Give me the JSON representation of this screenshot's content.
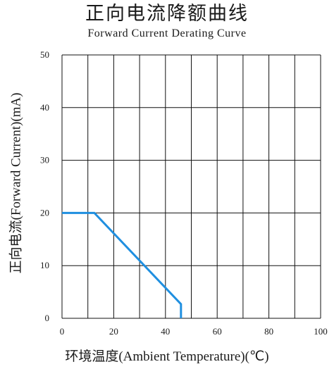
{
  "chart_data": {
    "type": "line",
    "title": "正向电流降额曲线",
    "subtitle": "Forward Current Derating Curve",
    "xlabel": "环境温度(Ambient Temperature)(℃)",
    "ylabel": "正向电流(Forward Current)(mA)",
    "xlim": [
      0,
      100
    ],
    "ylim": [
      0,
      50
    ],
    "xticks": [
      0,
      20,
      40,
      60,
      80,
      100
    ],
    "yticks": [
      0,
      10,
      20,
      30,
      40,
      50
    ],
    "grid": true,
    "line_color": "#1f8fe0",
    "series": [
      {
        "x": [
          0,
          12.5,
          46,
          46
        ],
        "y": [
          20,
          20,
          2.7,
          0
        ]
      }
    ]
  }
}
